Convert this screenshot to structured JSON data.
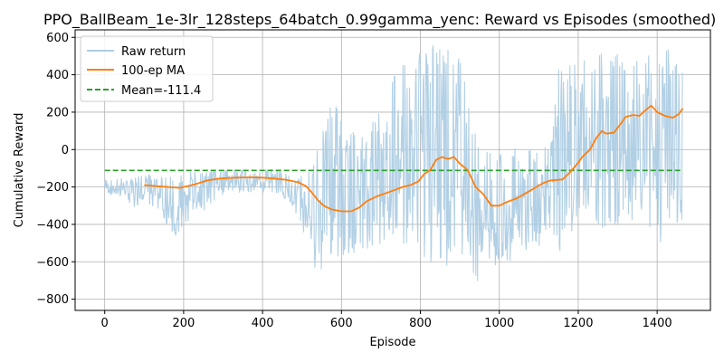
{
  "chart_data": {
    "type": "line",
    "title": "PPO_BallBeam_1e-3lr_128steps_64batch_0.99gamma_yenc: Reward vs Episodes (smoothed)",
    "xlabel": "Episode",
    "ylabel": "Cumulative Reward",
    "xlim": [
      -75,
      1535
    ],
    "ylim": [
      -860,
      640
    ],
    "xticks": [
      0,
      200,
      400,
      600,
      800,
      1000,
      1200,
      1400
    ],
    "yticks": [
      -800,
      -600,
      -400,
      -200,
      0,
      200,
      400,
      600
    ],
    "grid": true,
    "legend_position": "top-left",
    "colors": {
      "raw": "#aecde4",
      "ma": "#ff7f0e",
      "mean": "#2ca02c"
    },
    "series": [
      {
        "name": "Raw return",
        "style": "band",
        "x": [
          0,
          25,
          50,
          75,
          100,
          125,
          150,
          175,
          200,
          225,
          250,
          275,
          300,
          325,
          350,
          375,
          400,
          425,
          450,
          475,
          500,
          525,
          550,
          575,
          600,
          625,
          650,
          675,
          700,
          725,
          750,
          775,
          800,
          825,
          850,
          875,
          900,
          925,
          950,
          975,
          1000,
          1025,
          1050,
          1075,
          1100,
          1125,
          1150,
          1175,
          1200,
          1225,
          1250,
          1275,
          1300,
          1325,
          1350,
          1375,
          1400,
          1425,
          1450,
          1465
        ],
        "low": [
          -250,
          -240,
          -260,
          -320,
          -260,
          -330,
          -380,
          -500,
          -420,
          -360,
          -330,
          -280,
          -250,
          -230,
          -230,
          -230,
          -230,
          -240,
          -260,
          -300,
          -420,
          -620,
          -660,
          -580,
          -600,
          -590,
          -580,
          -560,
          -520,
          -500,
          -500,
          -530,
          -660,
          -640,
          -600,
          -660,
          -640,
          -780,
          -700,
          -640,
          -620,
          -600,
          -560,
          -540,
          -520,
          -480,
          -560,
          -480,
          -380,
          -300,
          -400,
          -500,
          -420,
          -360,
          -400,
          -380,
          -620,
          -360,
          -400,
          -420
        ],
        "high": [
          -160,
          -150,
          -150,
          -150,
          -130,
          -130,
          -140,
          -140,
          -130,
          -110,
          -120,
          -110,
          -110,
          -100,
          -110,
          -110,
          -110,
          -100,
          -110,
          -150,
          -130,
          -60,
          80,
          340,
          220,
          120,
          60,
          120,
          300,
          380,
          450,
          500,
          540,
          560,
          560,
          560,
          480,
          250,
          10,
          20,
          10,
          10,
          10,
          20,
          10,
          20,
          470,
          480,
          480,
          500,
          520,
          530,
          510,
          500,
          500,
          520,
          540,
          540,
          530,
          530
        ]
      },
      {
        "name": "100-ep MA",
        "style": "line",
        "x": [
          100,
          130,
          160,
          190,
          210,
          230,
          260,
          290,
          330,
          370,
          400,
          430,
          460,
          490,
          510,
          525,
          540,
          555,
          575,
          600,
          625,
          645,
          665,
          690,
          710,
          730,
          755,
          775,
          795,
          810,
          825,
          840,
          855,
          870,
          885,
          900,
          920,
          940,
          960,
          980,
          1000,
          1020,
          1045,
          1070,
          1090,
          1110,
          1130,
          1160,
          1180,
          1200,
          1210,
          1230,
          1245,
          1260,
          1270,
          1290,
          1305,
          1320,
          1340,
          1355,
          1370,
          1385,
          1400,
          1420,
          1440,
          1455,
          1465
        ],
        "y": [
          -190,
          -195,
          -200,
          -205,
          -195,
          -185,
          -165,
          -155,
          -150,
          -148,
          -150,
          -155,
          -162,
          -175,
          -195,
          -230,
          -270,
          -300,
          -320,
          -330,
          -330,
          -310,
          -275,
          -250,
          -235,
          -220,
          -200,
          -190,
          -170,
          -130,
          -110,
          -55,
          -40,
          -50,
          -40,
          -75,
          -110,
          -200,
          -240,
          -300,
          -300,
          -280,
          -260,
          -230,
          -205,
          -180,
          -165,
          -160,
          -120,
          -70,
          -40,
          0,
          60,
          100,
          85,
          90,
          130,
          175,
          185,
          180,
          210,
          235,
          200,
          180,
          170,
          190,
          220
        ]
      },
      {
        "name": "Mean=-111.4",
        "style": "dashed",
        "value": -111.4,
        "x": [
          0,
          1465
        ]
      }
    ]
  }
}
